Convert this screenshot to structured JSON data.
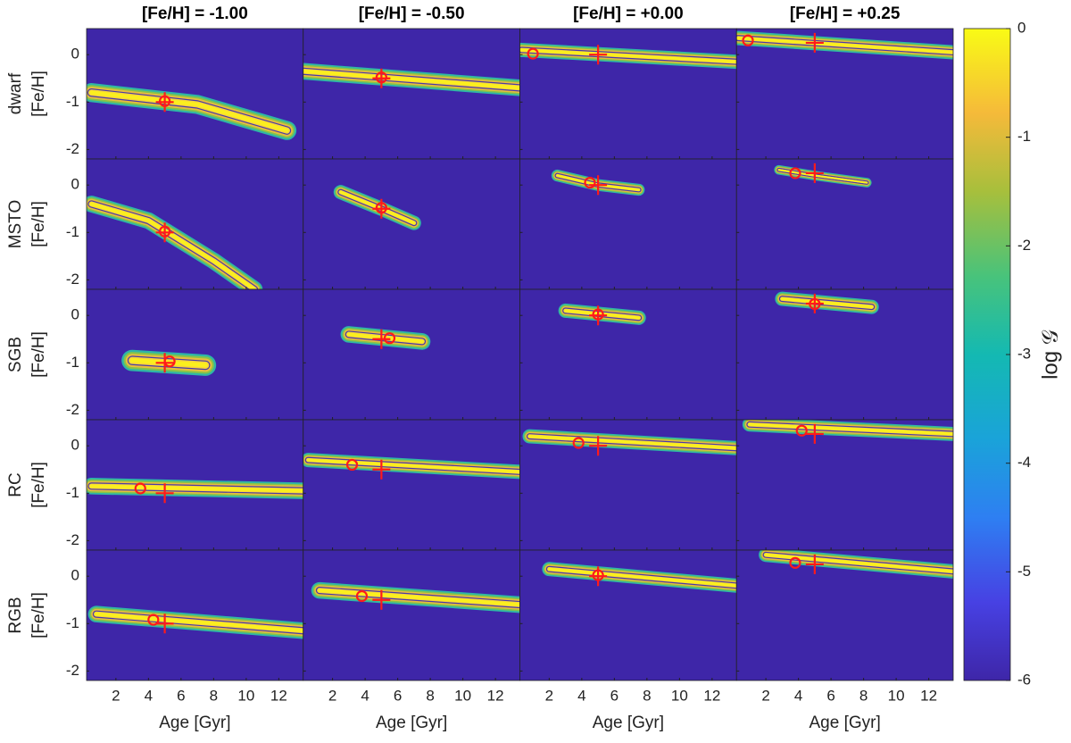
{
  "chart_data": {
    "type": "heatmap-grid",
    "columns": [
      "[Fe/H] = -1.00",
      "[Fe/H] = -0.50",
      "[Fe/H] = +0.00",
      "[Fe/H] = +0.25"
    ],
    "rows": [
      "dwarf",
      "MSTO",
      "SGB",
      "RC",
      "RGB"
    ],
    "ylabel": "[Fe/H]",
    "xlabel": "Age [Gyr]",
    "xlim": [
      0.2,
      13.5
    ],
    "xticks": [
      2,
      4,
      6,
      8,
      10,
      12
    ],
    "ylim": [
      -2.2,
      0.55
    ],
    "yticks": [
      -2,
      -1,
      0
    ],
    "background": "#3e26a8",
    "colorbar": {
      "label": "log 𝒢",
      "lim": [
        -6,
        0
      ],
      "ticks": [
        0,
        -1,
        -2,
        -3,
        -4,
        -5,
        -6
      ]
    },
    "panels": [
      [
        {
          "truth": [
            5,
            -1.0
          ],
          "estimate": [
            5,
            -0.98
          ],
          "ridge": {
            "age": [
              0.5,
              7,
              12.5
            ],
            "feh": [
              -0.8,
              -1.05,
              -1.6
            ]
          },
          "width": 0.4
        },
        {
          "truth": [
            5,
            -0.5
          ],
          "estimate": [
            5,
            -0.48
          ],
          "ridge": {
            "age": [
              0.2,
              13.5
            ],
            "feh": [
              -0.35,
              -0.7
            ]
          },
          "width": 0.35
        },
        {
          "truth": [
            5,
            0.0
          ],
          "estimate": [
            1,
            0.02
          ],
          "ridge": {
            "age": [
              0.3,
              13.5
            ],
            "feh": [
              0.1,
              -0.15
            ]
          },
          "width": 0.3
        },
        {
          "truth": [
            5,
            0.25
          ],
          "estimate": [
            0.9,
            0.3
          ],
          "ridge": {
            "age": [
              0.3,
              13.5
            ],
            "feh": [
              0.35,
              0.05
            ]
          },
          "width": 0.3
        }
      ],
      [
        {
          "truth": [
            5,
            -1.0
          ],
          "estimate": [
            5,
            -0.98
          ],
          "ridge": {
            "age": [
              0.5,
              4,
              8,
              10.5
            ],
            "feh": [
              -0.4,
              -0.75,
              -1.6,
              -2.2
            ]
          },
          "width": 0.35
        },
        {
          "truth": [
            5,
            -0.5
          ],
          "estimate": [
            5,
            -0.48
          ],
          "ridge": {
            "age": [
              2.5,
              5,
              7
            ],
            "feh": [
              -0.15,
              -0.5,
              -0.8
            ]
          },
          "width": 0.3
        },
        {
          "truth": [
            5,
            0.0
          ],
          "estimate": [
            4.5,
            0.05
          ],
          "ridge": {
            "age": [
              2.5,
              5,
              7.5
            ],
            "feh": [
              0.2,
              0.0,
              -0.1
            ]
          },
          "width": 0.25
        },
        {
          "truth": [
            5,
            0.25
          ],
          "estimate": [
            3.8,
            0.25
          ],
          "ridge": {
            "age": [
              2.8,
              5,
              8.2
            ],
            "feh": [
              0.32,
              0.2,
              0.05
            ]
          },
          "width": 0.2
        }
      ],
      [
        {
          "truth": [
            5,
            -1.0
          ],
          "estimate": [
            5.3,
            -0.97
          ],
          "ridge": {
            "age": [
              3,
              7.5
            ],
            "feh": [
              -0.95,
              -1.05
            ]
          },
          "width": 0.45
        },
        {
          "truth": [
            5,
            -0.5
          ],
          "estimate": [
            5.5,
            -0.48
          ],
          "ridge": {
            "age": [
              3,
              7.5
            ],
            "feh": [
              -0.4,
              -0.55
            ]
          },
          "width": 0.35
        },
        {
          "truth": [
            5,
            0.0
          ],
          "estimate": [
            5,
            0.02
          ],
          "ridge": {
            "age": [
              3,
              7.5
            ],
            "feh": [
              0.1,
              -0.05
            ]
          },
          "width": 0.3
        },
        {
          "truth": [
            5,
            0.25
          ],
          "estimate": [
            5,
            0.24
          ],
          "ridge": {
            "age": [
              3,
              8.5
            ],
            "feh": [
              0.35,
              0.18
            ]
          },
          "width": 0.3
        }
      ],
      [
        {
          "truth": [
            5,
            -1.0
          ],
          "estimate": [
            3.5,
            -0.9
          ],
          "ridge": {
            "age": [
              0.5,
              13.5
            ],
            "feh": [
              -0.85,
              -0.95
            ]
          },
          "width": 0.35
        },
        {
          "truth": [
            5,
            -0.5
          ],
          "estimate": [
            3.2,
            -0.4
          ],
          "ridge": {
            "age": [
              0.5,
              13.5
            ],
            "feh": [
              -0.3,
              -0.55
            ]
          },
          "width": 0.3
        },
        {
          "truth": [
            5,
            0.0
          ],
          "estimate": [
            3.8,
            0.06
          ],
          "ridge": {
            "age": [
              0.8,
              13.5
            ],
            "feh": [
              0.2,
              -0.05
            ]
          },
          "width": 0.3
        },
        {
          "truth": [
            5,
            0.25
          ],
          "estimate": [
            4.2,
            0.32
          ],
          "ridge": {
            "age": [
              1,
              13.5
            ],
            "feh": [
              0.45,
              0.25
            ]
          },
          "width": 0.3
        }
      ],
      [
        {
          "truth": [
            5,
            -1.0
          ],
          "estimate": [
            4.3,
            -0.92
          ],
          "ridge": {
            "age": [
              0.8,
              13.5
            ],
            "feh": [
              -0.8,
              -1.15
            ]
          },
          "width": 0.35
        },
        {
          "truth": [
            5,
            -0.5
          ],
          "estimate": [
            3.8,
            -0.42
          ],
          "ridge": {
            "age": [
              1.2,
              13.5
            ],
            "feh": [
              -0.3,
              -0.6
            ]
          },
          "width": 0.35
        },
        {
          "truth": [
            5,
            0.0
          ],
          "estimate": [
            5,
            0.02
          ],
          "ridge": {
            "age": [
              2,
              13.5
            ],
            "feh": [
              0.15,
              -0.2
            ]
          },
          "width": 0.3
        },
        {
          "truth": [
            5,
            0.25
          ],
          "estimate": [
            3.8,
            0.28
          ],
          "ridge": {
            "age": [
              2,
              13.5
            ],
            "feh": [
              0.45,
              0.1
            ]
          },
          "width": 0.3
        }
      ]
    ]
  }
}
